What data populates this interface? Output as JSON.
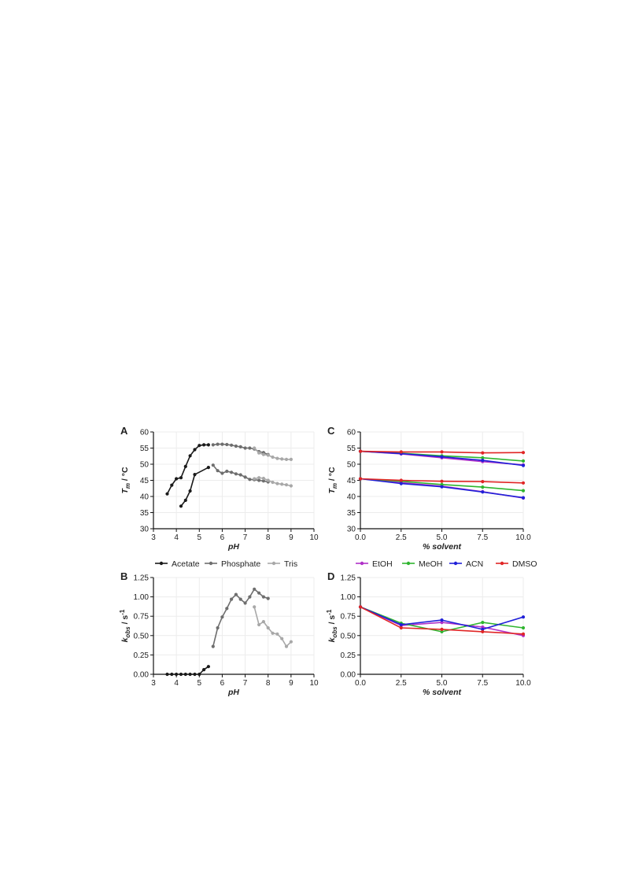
{
  "chart_data": [
    {
      "panel": "A",
      "type": "line",
      "xlabel": "pH",
      "ylabel_main": "T",
      "ylabel_sub": "m",
      "ylabel_unit": " / °C",
      "xlim": [
        3,
        10
      ],
      "ylim": [
        30,
        60
      ],
      "xticks": [
        "3",
        "4",
        "5",
        "6",
        "7",
        "8",
        "9",
        "10"
      ],
      "yticks": [
        "30",
        "35",
        "40",
        "45",
        "50",
        "55",
        "60"
      ],
      "grid": true,
      "series": [
        {
          "name": "Acetate",
          "color": "#1a1a1a",
          "x": [
            3.6,
            3.8,
            4.0,
            4.2,
            4.4,
            4.6,
            4.8,
            5.0,
            5.2,
            5.4
          ],
          "y": [
            40.8,
            43.5,
            45.5,
            45.8,
            49.3,
            52.6,
            54.5,
            55.8,
            56.0,
            56.0
          ]
        },
        {
          "name": "Acetate",
          "color": "#1a1a1a",
          "x": [
            4.2,
            4.4,
            4.6,
            4.8,
            5.4
          ],
          "y": [
            37.0,
            38.8,
            41.7,
            46.8,
            49.0
          ]
        },
        {
          "name": "Phosphate",
          "color": "#6e6e6e",
          "x": [
            5.6,
            5.8,
            6.0,
            6.2,
            6.4,
            6.6,
            6.8,
            7.0,
            7.2,
            7.4,
            7.6,
            7.8,
            8.0
          ],
          "y": [
            56.0,
            56.2,
            56.2,
            56.1,
            55.9,
            55.6,
            55.4,
            55.0,
            55.0,
            54.7,
            53.9,
            53.6,
            53.0
          ]
        },
        {
          "name": "Phosphate",
          "color": "#6e6e6e",
          "x": [
            5.6,
            5.8,
            6.0,
            6.2,
            6.4,
            6.6,
            6.8,
            7.0,
            7.2,
            7.4,
            7.6,
            7.8,
            8.0
          ],
          "y": [
            49.7,
            48.0,
            47.2,
            47.8,
            47.5,
            47.0,
            46.7,
            46.0,
            45.3,
            45.2,
            45.0,
            44.8,
            44.5
          ]
        },
        {
          "name": "Tris",
          "color": "#a8a8a8",
          "x": [
            7.4,
            7.6,
            7.8,
            8.0,
            8.2,
            8.4,
            8.6,
            8.8,
            9.0
          ],
          "y": [
            55.0,
            53.5,
            53.0,
            52.8,
            52.2,
            51.8,
            51.6,
            51.5,
            51.5
          ]
        },
        {
          "name": "Tris",
          "color": "#a8a8a8",
          "x": [
            7.4,
            7.6,
            7.8,
            8.0,
            8.2,
            8.4,
            8.6,
            8.8,
            9.0
          ],
          "y": [
            45.5,
            45.8,
            45.6,
            45.0,
            44.4,
            44.0,
            43.8,
            43.6,
            43.3
          ]
        }
      ]
    },
    {
      "panel": "C",
      "type": "line",
      "xlabel": "% solvent",
      "ylabel_main": "T",
      "ylabel_sub": "m",
      "ylabel_unit": " / °C",
      "xlim": [
        0,
        10
      ],
      "ylim": [
        30,
        60
      ],
      "xticks": [
        "0.0",
        "2.5",
        "5.0",
        "7.5",
        "10.0"
      ],
      "yticks": [
        "30",
        "35",
        "40",
        "45",
        "50",
        "55",
        "60"
      ],
      "grid": true,
      "series": [
        {
          "name": "EtOH",
          "color": "#b030c8",
          "x": [
            0,
            2.5,
            5,
            7.5,
            10
          ],
          "y": [
            54.0,
            53.2,
            52.0,
            50.8,
            49.8
          ]
        },
        {
          "name": "MeOH",
          "color": "#2fb52f",
          "x": [
            0,
            2.5,
            5,
            7.5,
            10
          ],
          "y": [
            54.0,
            53.4,
            52.6,
            52.0,
            51.0
          ]
        },
        {
          "name": "ACN",
          "color": "#2020d8",
          "x": [
            0,
            2.5,
            5,
            7.5,
            10
          ],
          "y": [
            54.0,
            53.3,
            52.3,
            51.2,
            49.6
          ]
        },
        {
          "name": "DMSO",
          "color": "#e02525",
          "x": [
            0,
            2.5,
            5,
            7.5,
            10
          ],
          "y": [
            54.0,
            53.8,
            53.8,
            53.5,
            53.6
          ]
        },
        {
          "name": "EtOH",
          "color": "#b030c8",
          "x": [
            0,
            2.5,
            5,
            7.5,
            10
          ],
          "y": [
            45.5,
            44.3,
            43.2,
            41.5,
            39.5
          ]
        },
        {
          "name": "MeOH",
          "color": "#2fb52f",
          "x": [
            0,
            2.5,
            5,
            7.5,
            10
          ],
          "y": [
            45.5,
            44.7,
            43.7,
            42.9,
            41.8
          ]
        },
        {
          "name": "ACN",
          "color": "#2020d8",
          "x": [
            0,
            2.5,
            5,
            7.5,
            10
          ],
          "y": [
            45.5,
            44.0,
            43.0,
            41.4,
            39.6
          ]
        },
        {
          "name": "DMSO",
          "color": "#e02525",
          "x": [
            0,
            2.5,
            5,
            7.5,
            10
          ],
          "y": [
            45.5,
            45.0,
            44.7,
            44.6,
            44.2
          ]
        }
      ]
    },
    {
      "panel": "B",
      "type": "line",
      "xlabel": "pH",
      "ylabel_main": "k",
      "ylabel_sub": "obs",
      "ylabel_unit": " / s",
      "ylabel_sup": "-1",
      "xlim": [
        3,
        10
      ],
      "ylim": [
        0,
        1.25
      ],
      "xticks": [
        "3",
        "4",
        "5",
        "6",
        "7",
        "8",
        "9",
        "10"
      ],
      "yticks": [
        "0.00",
        "0.25",
        "0.50",
        "0.75",
        "1.00",
        "1.25"
      ],
      "grid": true,
      "series": [
        {
          "name": "Acetate",
          "color": "#1a1a1a",
          "x": [
            3.6,
            3.8,
            4.0,
            4.2,
            4.4,
            4.6,
            4.8,
            5.0,
            5.2,
            5.4
          ],
          "y": [
            0.0,
            0.0,
            0.0,
            0.0,
            0.0,
            0.0,
            0.0,
            0.0,
            0.06,
            0.1
          ]
        },
        {
          "name": "Phosphate",
          "color": "#6e6e6e",
          "x": [
            5.6,
            5.8,
            6.0,
            6.2,
            6.4,
            6.6,
            6.8,
            7.0,
            7.2,
            7.4,
            7.6,
            7.8,
            8.0
          ],
          "y": [
            0.36,
            0.6,
            0.74,
            0.85,
            0.97,
            1.03,
            0.97,
            0.92,
            1.0,
            1.1,
            1.05,
            1.0,
            0.98
          ]
        },
        {
          "name": "Tris",
          "color": "#a8a8a8",
          "x": [
            7.4,
            7.6,
            7.8,
            8.0,
            8.2,
            8.4,
            8.6,
            8.8,
            9.0
          ],
          "y": [
            0.87,
            0.64,
            0.68,
            0.6,
            0.53,
            0.52,
            0.46,
            0.36,
            0.42
          ]
        }
      ]
    },
    {
      "panel": "D",
      "type": "line",
      "xlabel": "% solvent",
      "ylabel_main": "k",
      "ylabel_sub": "obs",
      "ylabel_unit": " / s",
      "ylabel_sup": "-1",
      "xlim": [
        0,
        10
      ],
      "ylim": [
        0,
        1.25
      ],
      "xticks": [
        "0.0",
        "2.5",
        "5.0",
        "7.5",
        "10.0"
      ],
      "yticks": [
        "0.00",
        "0.25",
        "0.50",
        "0.75",
        "1.00",
        "1.25"
      ],
      "grid": true,
      "series": [
        {
          "name": "EtOH",
          "color": "#b030c8",
          "x": [
            0,
            2.5,
            5,
            7.5,
            10
          ],
          "y": [
            0.87,
            0.63,
            0.67,
            0.61,
            0.5
          ]
        },
        {
          "name": "MeOH",
          "color": "#2fb52f",
          "x": [
            0,
            2.5,
            5,
            7.5,
            10
          ],
          "y": [
            0.87,
            0.66,
            0.55,
            0.67,
            0.6
          ]
        },
        {
          "name": "ACN",
          "color": "#2020d8",
          "x": [
            0,
            2.5,
            5,
            7.5,
            10
          ],
          "y": [
            0.87,
            0.64,
            0.7,
            0.58,
            0.74
          ]
        },
        {
          "name": "DMSO",
          "color": "#e02525",
          "x": [
            0,
            2.5,
            5,
            7.5,
            10
          ],
          "y": [
            0.87,
            0.6,
            0.58,
            0.55,
            0.52
          ]
        }
      ]
    }
  ],
  "legends": {
    "buffer": [
      {
        "label": "Acetate",
        "color": "#1a1a1a"
      },
      {
        "label": "Phosphate",
        "color": "#6e6e6e"
      },
      {
        "label": "Tris",
        "color": "#a8a8a8"
      }
    ],
    "solvent": [
      {
        "label": "EtOH",
        "color": "#b030c8"
      },
      {
        "label": "MeOH",
        "color": "#2fb52f"
      },
      {
        "label": "ACN",
        "color": "#2020d8"
      },
      {
        "label": "DMSO",
        "color": "#e02525"
      }
    ]
  }
}
